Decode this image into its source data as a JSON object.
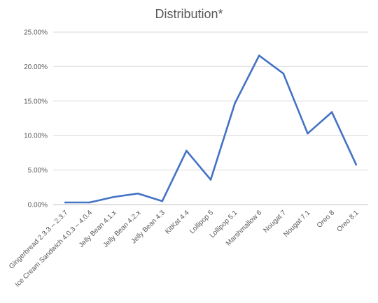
{
  "chart_data": {
    "type": "line",
    "title": "Distribution*",
    "xlabel": "",
    "ylabel": "",
    "categories": [
      "Gingerbread 2.3.3 – 2.3.7",
      "Ice Cream Sandwich 4.0.3 – 4.0.4",
      "Jelly Bean 4.1.x",
      "Jelly Bean 4.2.x",
      "Jelly Bean 4.3",
      "KitKat 4.4",
      "Lollipop 5",
      "Lollipop 5.1",
      "Marshmallow 6",
      "Nougat 7",
      "Nougat 7.1",
      "Oreo 8",
      "Oreo 8.1"
    ],
    "series": [
      {
        "values": [
          0.3,
          0.3,
          1.1,
          1.6,
          0.5,
          7.8,
          3.6,
          14.7,
          21.6,
          19.0,
          10.3,
          13.4,
          5.8
        ]
      }
    ],
    "yticks": [
      "0.00%",
      "5.00%",
      "10.00%",
      "15.00%",
      "20.00%",
      "25.00%"
    ],
    "ylim": [
      0,
      25
    ],
    "grid": true,
    "legend": "none",
    "colors": {
      "series": "#4472c4",
      "grid": "#d9d9d9",
      "text": "#595959"
    }
  }
}
